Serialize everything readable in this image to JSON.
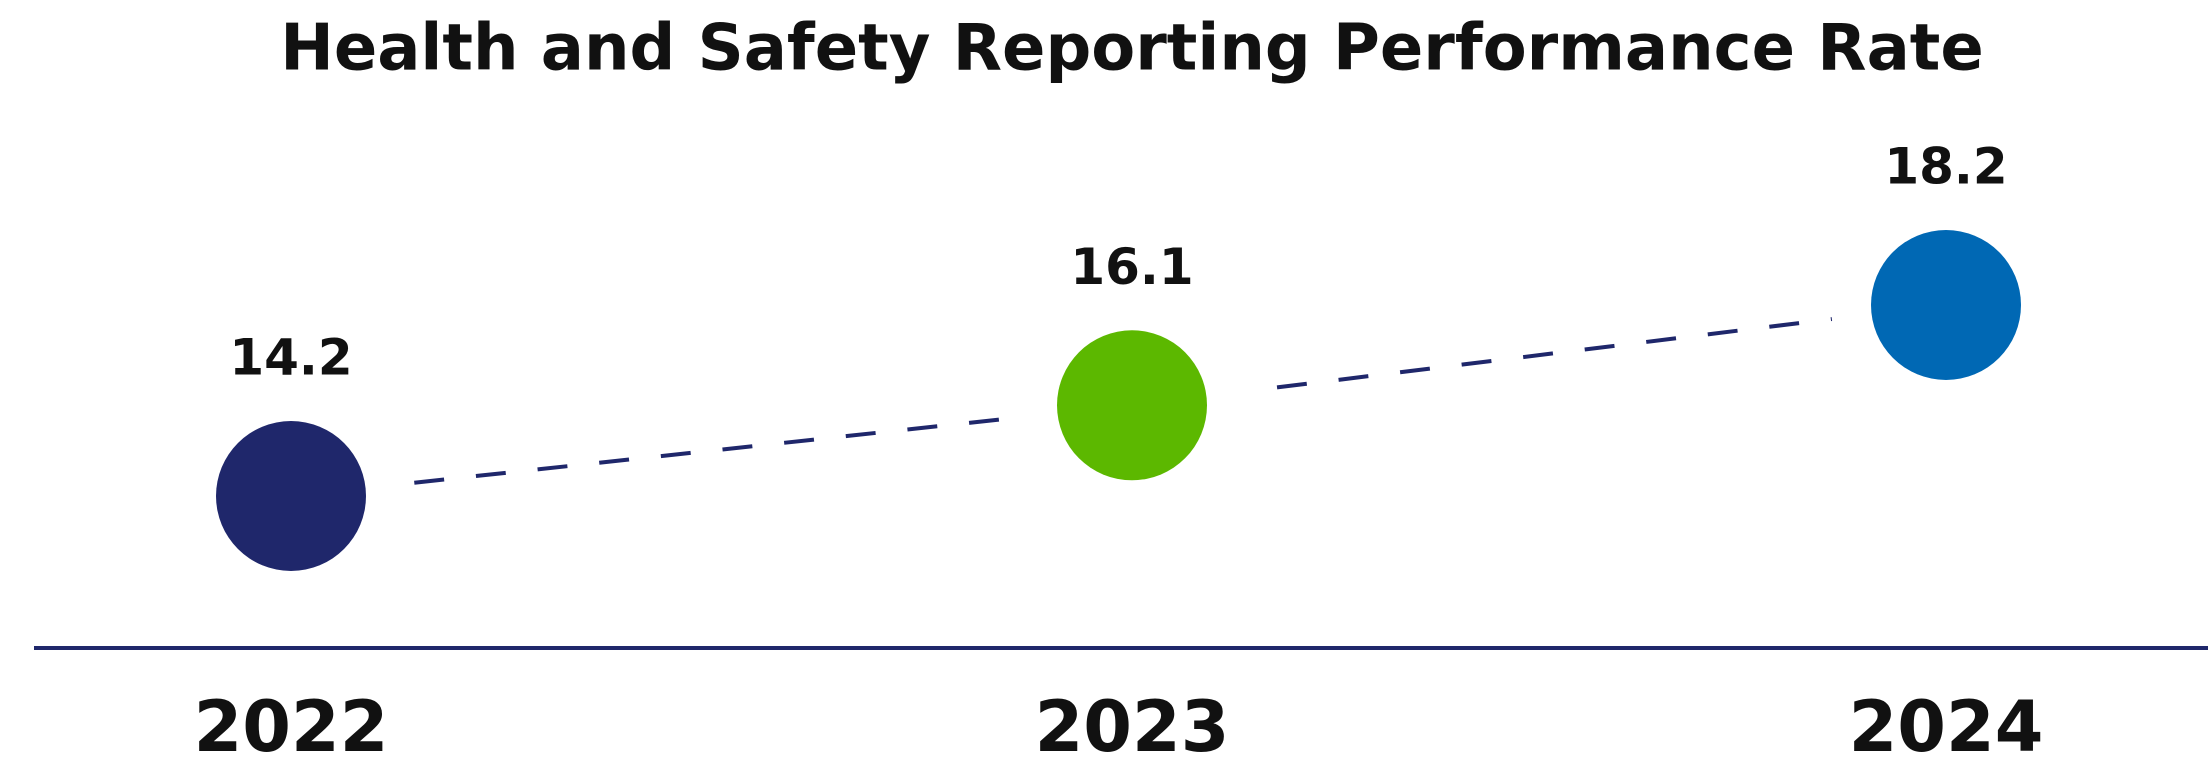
{
  "chart_data": {
    "type": "line",
    "title": "Health and Safety Reporting Performance Rate",
    "categories": [
      "2022",
      "2023",
      "2024"
    ],
    "values": [
      14.2,
      16.1,
      18.2
    ],
    "point_colors": [
      "#1f276b",
      "#5cb800",
      "#0068b4"
    ],
    "line_color": "#1f276b",
    "line_style": "dashed",
    "axis_color": "#1f276b"
  }
}
